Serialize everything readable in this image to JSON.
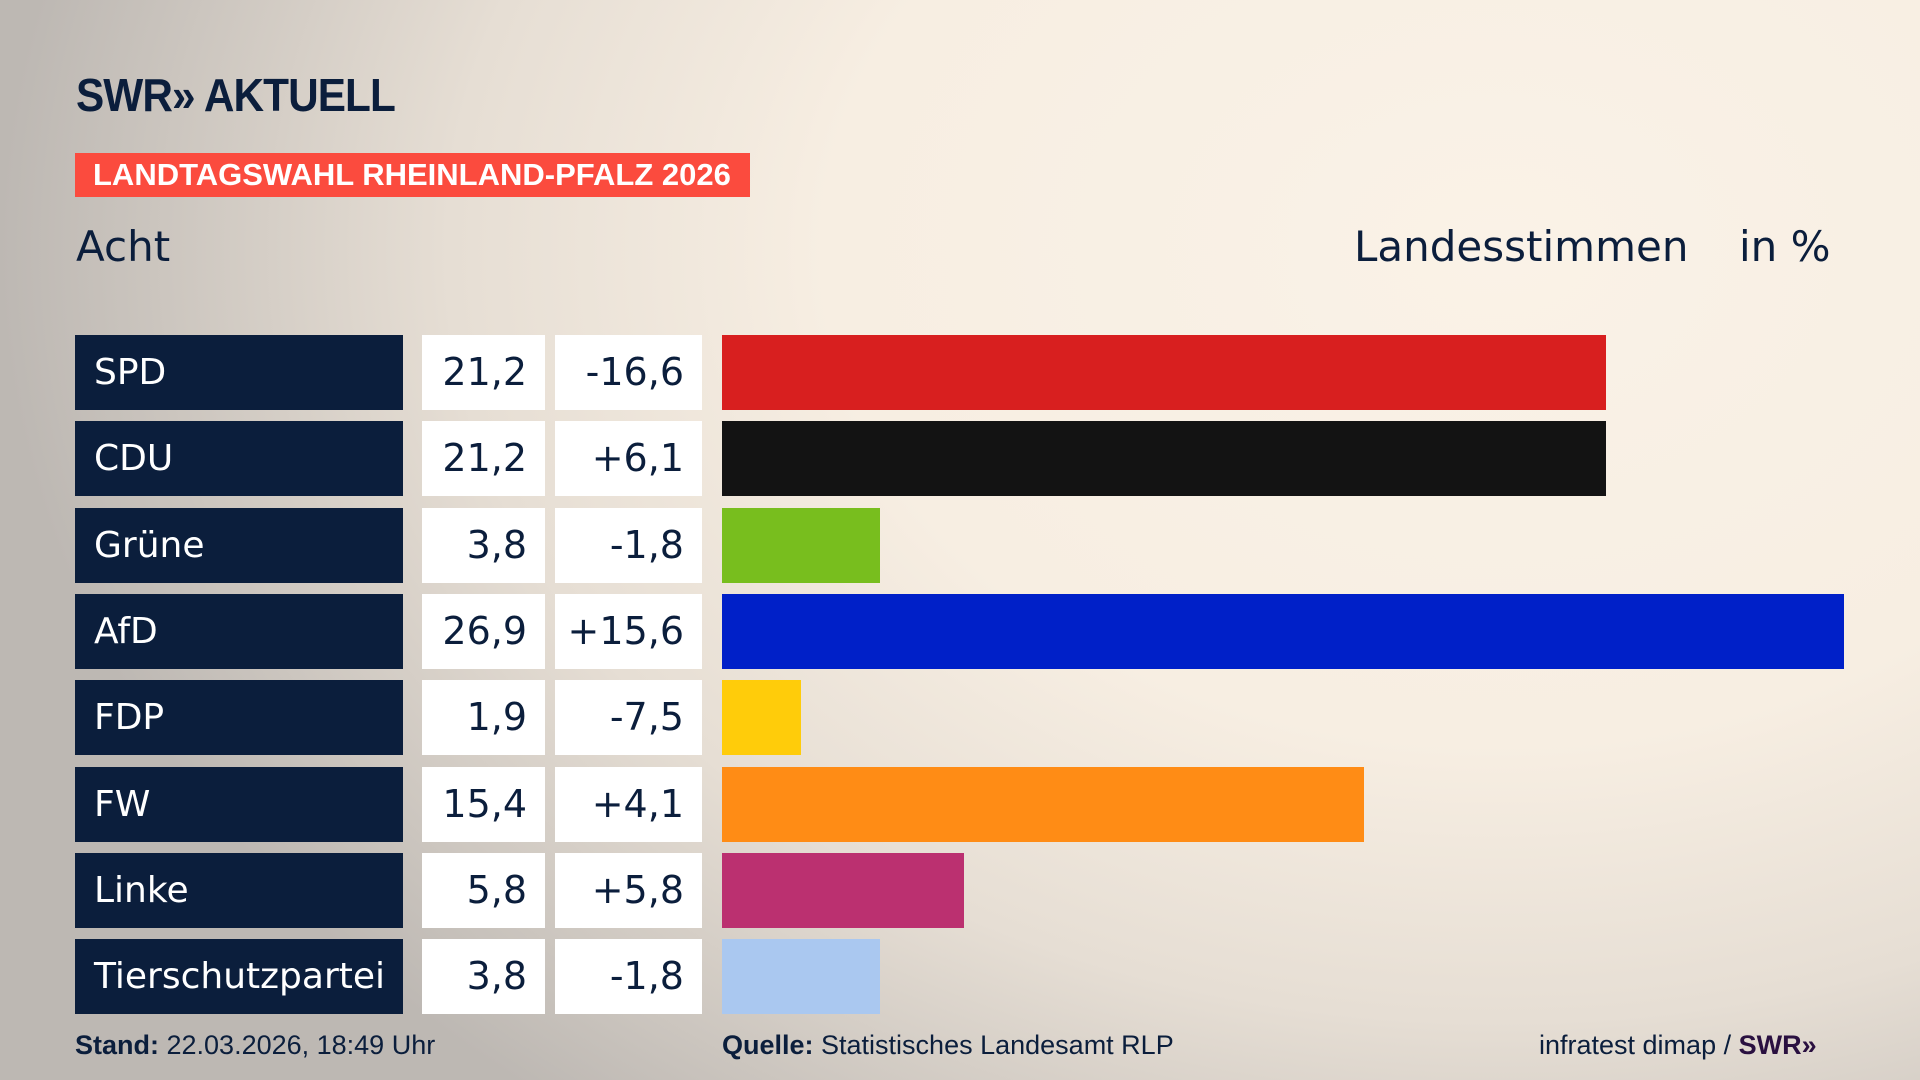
{
  "header": {
    "logo": "SWR» AKTUELL",
    "banner": "LANDTAGSWAHL RHEINLAND-PFALZ 2026",
    "left_label": "Acht",
    "right_label": "Landesstimmen",
    "unit_label": "in %"
  },
  "chart_data": {
    "type": "bar",
    "orientation": "horizontal",
    "xlim": [
      0,
      26.9
    ],
    "categories": [
      "SPD",
      "CDU",
      "Grüne",
      "AfD",
      "FDP",
      "FW",
      "Linke",
      "Tierschutzpartei"
    ],
    "values": [
      21.2,
      21.2,
      3.8,
      26.9,
      1.9,
      15.4,
      5.8,
      3.8
    ],
    "value_labels": [
      "21,2",
      "21,2",
      "3,8",
      "26,9",
      "1,9",
      "15,4",
      "5,8",
      "3,8"
    ],
    "diff_labels": [
      "-16,6",
      "+6,1",
      "-1,8",
      "+15,6",
      "-7,5",
      "+4,1",
      "+5,8",
      "-1,8"
    ],
    "colors": [
      "#d81f1f",
      "#131313",
      "#78be1e",
      "#0020c8",
      "#ffcc0a",
      "#ff8c15",
      "#bb3070",
      "#aac8f0"
    ]
  },
  "footer": {
    "stand_label": "Stand:",
    "stand_value": " 22.03.2026, 18:49 Uhr",
    "source_label": "Quelle:",
    "source_value": " Statistisches Landesamt RLP",
    "credit": "infratest dimap / ",
    "credit_logo": "SWR»"
  }
}
